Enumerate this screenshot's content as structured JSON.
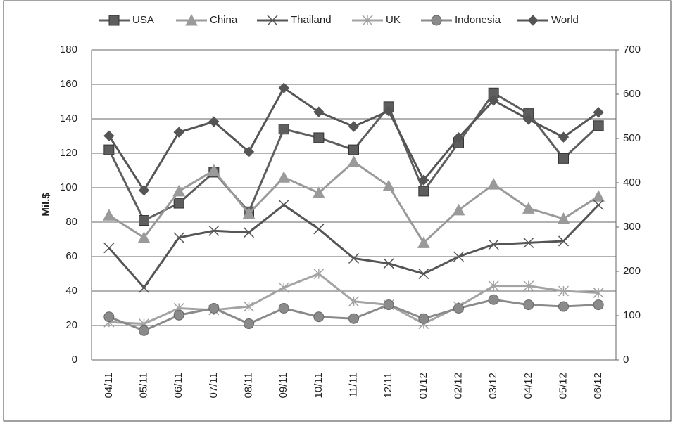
{
  "chart_data": {
    "type": "line",
    "y_label": "Mil.$",
    "categories": [
      "04/11",
      "05/11",
      "06/11",
      "07/11",
      "08/11",
      "09/11",
      "10/11",
      "11/11",
      "12/11",
      "01/12",
      "02/12",
      "03/12",
      "04/12",
      "05/12",
      "06/12"
    ],
    "ylim": [
      0,
      180
    ],
    "yticks": [
      0,
      20,
      40,
      60,
      80,
      100,
      120,
      140,
      160,
      180
    ],
    "y2lim": [
      0,
      700
    ],
    "y2ticks": [
      0,
      100,
      200,
      300,
      400,
      500,
      600,
      700
    ],
    "grid": true,
    "legend": "top",
    "series": [
      {
        "name": "USA",
        "color": "#5e5e5e",
        "marker": "square",
        "values": [
          122,
          81,
          91,
          109,
          86,
          134,
          129,
          122,
          147,
          98,
          126,
          155,
          143,
          117,
          136
        ]
      },
      {
        "name": "China",
        "color": "#9a9a9a",
        "marker": "triangle",
        "values": [
          84,
          71,
          98,
          110,
          85,
          106,
          97,
          115,
          101,
          68,
          87,
          102,
          88,
          82,
          95
        ]
      },
      {
        "name": "Thailand",
        "color": "#555555",
        "marker": "x",
        "values": [
          65,
          42,
          71,
          75,
          74,
          90,
          76,
          59,
          56,
          50,
          60,
          67,
          68,
          69,
          90
        ]
      },
      {
        "name": "UK",
        "color": "#a3a3a3",
        "marker": "star",
        "values": [
          22,
          21,
          30,
          29,
          31,
          42,
          50,
          34,
          32,
          21,
          31,
          43,
          43,
          40,
          39
        ]
      },
      {
        "name": "Indonesia",
        "color": "#8a8a8a",
        "marker": "circle",
        "values": [
          25,
          17,
          26,
          30,
          21,
          30,
          25,
          24,
          32,
          24,
          30,
          35,
          32,
          31,
          32
        ]
      },
      {
        "name": "World",
        "color": "#555555",
        "marker": "diamond",
        "axis": "y2",
        "values": [
          506,
          383,
          514,
          538,
          470,
          614,
          560,
          527,
          562,
          406,
          502,
          586,
          543,
          503,
          559
        ]
      }
    ]
  }
}
